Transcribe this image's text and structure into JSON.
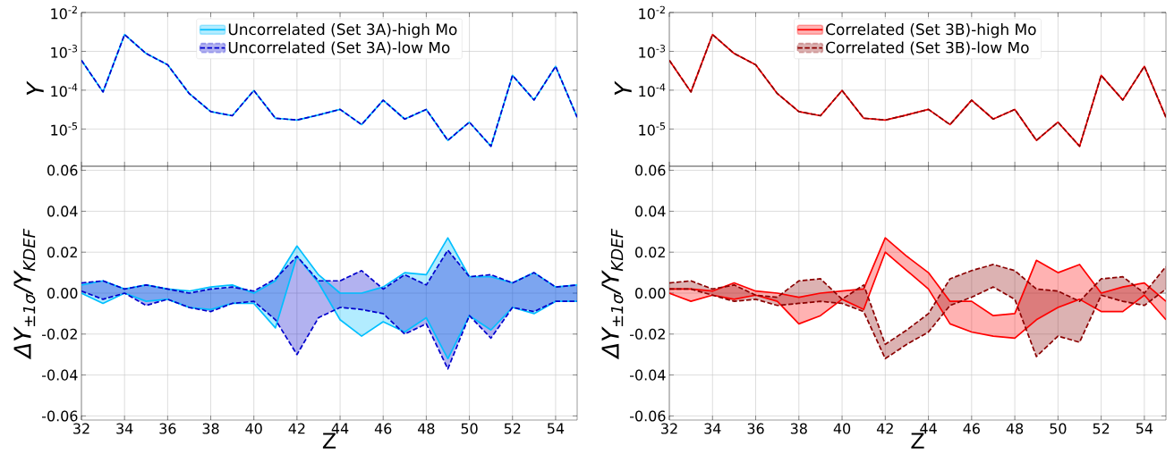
{
  "chart_data": [
    {
      "type": "line",
      "ylabel": "Y",
      "x": [
        32,
        33,
        34,
        35,
        36,
        37,
        38,
        39,
        40,
        41,
        42,
        43,
        44,
        45,
        46,
        47,
        48,
        49,
        50,
        51,
        52,
        53,
        54,
        55
      ],
      "xlim": [
        32,
        55
      ],
      "xticks": [
        32,
        34,
        36,
        38,
        40,
        42,
        44,
        46,
        48,
        50,
        52,
        54
      ],
      "ylim": [
        1.1e-06,
        0.01
      ],
      "yticks": [
        {
          "value": 0.01,
          "label": "10$^{-2}$"
        },
        {
          "value": 0.001,
          "label": "10$^{-3}$"
        },
        {
          "value": 0.0001,
          "label": "10$^{-4}$"
        },
        {
          "value": 1e-05,
          "label": "10$^{-5}$"
        }
      ],
      "log": true,
      "grid": true,
      "legend": "top",
      "tick_labels": "y",
      "series": [
        {
          "name": "Uncorrelated (Set 3A)-high Mo",
          "color": "#00bfff",
          "line_style": "solid",
          "values": [
            0.00059,
            9e-05,
            0.0027,
            0.00088,
            0.00045,
            8.2e-05,
            2.8e-05,
            2.2e-05,
            9.8e-05,
            1.9e-05,
            1.7e-05,
            2.3e-05,
            3.2e-05,
            1.3e-05,
            5.5e-05,
            1.8e-05,
            3.2e-05,
            5.1e-06,
            1.5e-05,
            3.6e-06,
            0.00024,
            5.6e-05,
            0.00041,
            2e-05
          ]
        },
        {
          "name": "Uncorrelated (Set 3A)-low Mo",
          "color": "#0000cd",
          "line_style": "dashed",
          "values": [
            0.00059,
            9e-05,
            0.0027,
            0.00088,
            0.00045,
            8.2e-05,
            2.8e-05,
            2.2e-05,
            9.8e-05,
            1.9e-05,
            1.7e-05,
            2.3e-05,
            3.2e-05,
            1.3e-05,
            5.5e-05,
            1.8e-05,
            3.2e-05,
            5.1e-06,
            1.5e-05,
            3.6e-06,
            0.00024,
            5.6e-05,
            0.00041,
            2e-05
          ]
        }
      ]
    },
    {
      "type": "line",
      "ylabel": "Y",
      "x": [
        32,
        33,
        34,
        35,
        36,
        37,
        38,
        39,
        40,
        41,
        42,
        43,
        44,
        45,
        46,
        47,
        48,
        49,
        50,
        51,
        52,
        53,
        54,
        55
      ],
      "xlim": [
        32,
        55
      ],
      "xticks": [
        32,
        34,
        36,
        38,
        40,
        42,
        44,
        46,
        48,
        50,
        52,
        54
      ],
      "ylim": [
        1.1e-06,
        0.01
      ],
      "yticks": [
        {
          "value": 0.01,
          "label": "10$^{-2}$"
        },
        {
          "value": 0.001,
          "label": "10$^{-3}$"
        },
        {
          "value": 0.0001,
          "label": "10$^{-4}$"
        },
        {
          "value": 1e-05,
          "label": "10$^{-5}$"
        }
      ],
      "log": true,
      "grid": true,
      "legend": "top",
      "tick_labels": "y",
      "series": [
        {
          "name": "Correlated (Set 3B)-high Mo",
          "color": "#ff0000",
          "line_style": "solid",
          "values": [
            0.00059,
            9e-05,
            0.0027,
            0.00088,
            0.00045,
            8.2e-05,
            2.8e-05,
            2.2e-05,
            9.8e-05,
            1.9e-05,
            1.7e-05,
            2.3e-05,
            3.2e-05,
            1.3e-05,
            5.5e-05,
            1.8e-05,
            3.2e-05,
            5.1e-06,
            1.5e-05,
            3.6e-06,
            0.00024,
            5.6e-05,
            0.00041,
            2e-05
          ]
        },
        {
          "name": "Correlated (Set 3B)-low Mo",
          "color": "#8b0000",
          "line_style": "dashed",
          "values": [
            0.00059,
            9e-05,
            0.0027,
            0.00088,
            0.00045,
            8.2e-05,
            2.8e-05,
            2.2e-05,
            9.8e-05,
            1.9e-05,
            1.7e-05,
            2.3e-05,
            3.2e-05,
            1.3e-05,
            5.5e-05,
            1.8e-05,
            3.2e-05,
            5.1e-06,
            1.5e-05,
            3.6e-06,
            0.00024,
            5.6e-05,
            0.00041,
            2e-05
          ]
        }
      ]
    },
    {
      "type": "line",
      "xlabel": "Z",
      "ylabel": "ΔY$_{±1σ}$/Y$_{KDEF}$",
      "x": [
        32,
        33,
        34,
        35,
        36,
        37,
        38,
        39,
        40,
        41,
        42,
        43,
        44,
        45,
        46,
        47,
        48,
        49,
        50,
        51,
        52,
        53,
        54,
        55
      ],
      "xlim": [
        32,
        55
      ],
      "xticks": [
        32,
        34,
        36,
        38,
        40,
        42,
        44,
        46,
        48,
        50,
        52,
        54
      ],
      "ylim": [
        -0.062,
        0.062
      ],
      "yticks": [
        0.06,
        0.04,
        0.02,
        {
          "value": 0,
          "label": "0.00"
        },
        -0.02,
        -0.04,
        -0.06
      ],
      "grid": true,
      "series": [
        {
          "color": "#00bfff",
          "line_style": "solid",
          "values": [
            0.004,
            0.006,
            0.002,
            0.004,
            0.002,
            0.001,
            0.003,
            0.004,
            0,
            0.006,
            0.023,
            0.009,
            0,
            0,
            0.003,
            0.01,
            0.009,
            0.027,
            0.008,
            0.008,
            0.005,
            0.01,
            0.003,
            0.004
          ],
          "upper": [
            0.004,
            0.006,
            0.002,
            0.004,
            0.002,
            0.001,
            0.003,
            0.004,
            0,
            0.006,
            0.023,
            0.009,
            0,
            0,
            0.003,
            0.01,
            0.009,
            0.027,
            0.008,
            0.008,
            0.005,
            0.01,
            0.003,
            0.004
          ],
          "lower": [
            0,
            -0.005,
            0,
            -0.004,
            -0.003,
            -0.007,
            -0.008,
            -0.005,
            -0.005,
            -0.017,
            0.018,
            0.005,
            -0.013,
            -0.021,
            -0.014,
            -0.019,
            -0.012,
            -0.032,
            -0.011,
            -0.018,
            -0.007,
            -0.01,
            -0.004,
            -0.004
          ]
        },
        {
          "color": "#00bfff",
          "line_style": "solid",
          "values": [
            0,
            -0.005,
            0,
            -0.004,
            -0.003,
            -0.007,
            -0.008,
            -0.005,
            -0.005,
            -0.017,
            0.018,
            0.005,
            -0.013,
            -0.021,
            -0.014,
            -0.019,
            -0.012,
            -0.032,
            -0.011,
            -0.018,
            -0.007,
            -0.01,
            -0.004,
            -0.004
          ]
        },
        {
          "color": "#0000cd",
          "line_style": "dashed",
          "values": [
            0.005,
            0.006,
            0.002,
            0.004,
            0.002,
            0,
            0.002,
            0.003,
            0.001,
            0.007,
            0.018,
            0.006,
            0.006,
            0.011,
            0.002,
            0.009,
            0.004,
            0.021,
            0.008,
            0.009,
            0.005,
            0.01,
            0.003,
            0.004
          ],
          "upper": [
            0.005,
            0.006,
            0.002,
            0.004,
            0.002,
            0,
            0.002,
            0.003,
            0.001,
            0.007,
            0.018,
            0.006,
            0.006,
            0.011,
            0.002,
            0.009,
            0.004,
            0.021,
            0.008,
            0.009,
            0.005,
            0.01,
            0.003,
            0.004
          ],
          "lower": [
            0.001,
            -0.003,
            0,
            -0.006,
            -0.003,
            -0.007,
            -0.009,
            -0.005,
            -0.004,
            -0.013,
            -0.03,
            -0.012,
            -0.007,
            -0.008,
            -0.01,
            -0.02,
            -0.015,
            -0.037,
            -0.011,
            -0.022,
            -0.007,
            -0.009,
            -0.004,
            -0.004
          ]
        },
        {
          "color": "#0000cd",
          "line_style": "dashed",
          "values": [
            0.001,
            -0.003,
            0,
            -0.006,
            -0.003,
            -0.007,
            -0.009,
            -0.005,
            -0.004,
            -0.013,
            -0.03,
            -0.012,
            -0.007,
            -0.008,
            -0.01,
            -0.02,
            -0.015,
            -0.037,
            -0.011,
            -0.022,
            -0.007,
            -0.009,
            -0.004,
            -0.004
          ]
        }
      ]
    },
    {
      "type": "line",
      "xlabel": "Z",
      "ylabel": "ΔY$_{±1σ}$/Y$_{KDEF}$",
      "x": [
        32,
        33,
        34,
        35,
        36,
        37,
        38,
        39,
        40,
        41,
        42,
        43,
        44,
        45,
        46,
        47,
        48,
        49,
        50,
        51,
        52,
        53,
        54,
        55
      ],
      "xlim": [
        32,
        55
      ],
      "xticks": [
        32,
        34,
        36,
        38,
        40,
        42,
        44,
        46,
        48,
        50,
        52,
        54
      ],
      "ylim": [
        -0.062,
        0.062
      ],
      "yticks": [
        0.06,
        0.04,
        0.02,
        {
          "value": 0,
          "label": "0.00"
        },
        -0.02,
        -0.04,
        -0.06
      ],
      "grid": true,
      "series": [
        {
          "color": "#ff0000",
          "line_style": "solid",
          "values": [
            0.002,
            0.002,
            0.001,
            0.005,
            0.001,
            0,
            -0.002,
            0,
            0.001,
            0.002,
            0.027,
            0.018,
            0.01,
            -0.004,
            -0.004,
            -0.011,
            -0.01,
            0.016,
            0.01,
            0.014,
            0,
            0.003,
            0.005,
            -0.004
          ],
          "upper": [
            0.002,
            0.002,
            0.001,
            0.005,
            0.001,
            0,
            -0.002,
            0,
            0.001,
            0.002,
            0.027,
            0.018,
            0.01,
            -0.004,
            -0.004,
            -0.011,
            -0.01,
            0.016,
            0.01,
            0.014,
            0,
            0.003,
            0.005,
            -0.004
          ],
          "lower": [
            0,
            -0.004,
            -0.001,
            -0.003,
            -0.001,
            -0.004,
            -0.015,
            -0.011,
            -0.003,
            -0.008,
            0.02,
            0.011,
            0.002,
            -0.015,
            -0.019,
            -0.021,
            -0.022,
            -0.013,
            -0.007,
            -0.003,
            -0.009,
            -0.009,
            -0.001,
            -0.013
          ]
        },
        {
          "color": "#ff0000",
          "line_style": "solid",
          "values": [
            0,
            -0.004,
            -0.001,
            -0.003,
            -0.001,
            -0.004,
            -0.015,
            -0.011,
            -0.003,
            -0.008,
            0.02,
            0.011,
            0.002,
            -0.015,
            -0.019,
            -0.021,
            -0.022,
            -0.013,
            -0.007,
            -0.003,
            -0.009,
            -0.009,
            -0.001,
            -0.013
          ]
        },
        {
          "color": "#8b0000",
          "line_style": "dashed",
          "values": [
            0.005,
            0.006,
            0.002,
            0.004,
            -0.001,
            -0.002,
            0.006,
            0.007,
            -0.003,
            0.004,
            -0.025,
            -0.018,
            -0.01,
            0.007,
            0.011,
            0.014,
            0.011,
            0.002,
            0.001,
            -0.004,
            0.007,
            0.008,
            0,
            0.013
          ],
          "upper": [
            0.005,
            0.006,
            0.002,
            0.004,
            -0.001,
            -0.002,
            0.006,
            0.007,
            -0.003,
            0.004,
            -0.025,
            -0.018,
            -0.01,
            0.007,
            0.011,
            0.014,
            0.011,
            0.002,
            0.001,
            -0.004,
            0.007,
            0.008,
            0,
            0.013
          ],
          "lower": [
            0.002,
            0.002,
            -0.001,
            -0.004,
            -0.003,
            -0.006,
            -0.005,
            -0.004,
            -0.005,
            -0.009,
            -0.032,
            -0.025,
            -0.019,
            -0.006,
            -0.002,
            0.003,
            -0.003,
            -0.031,
            -0.021,
            -0.024,
            -0.001,
            -0.004,
            -0.006,
            0.002
          ]
        },
        {
          "color": "#8b0000",
          "line_style": "dashed",
          "values": [
            0.002,
            0.002,
            -0.001,
            -0.004,
            -0.003,
            -0.006,
            -0.005,
            -0.004,
            -0.005,
            -0.009,
            -0.032,
            -0.025,
            -0.019,
            -0.006,
            -0.002,
            0.003,
            -0.003,
            -0.031,
            -0.021,
            -0.024,
            -0.001,
            -0.004,
            -0.006,
            0.002
          ]
        }
      ]
    }
  ]
}
